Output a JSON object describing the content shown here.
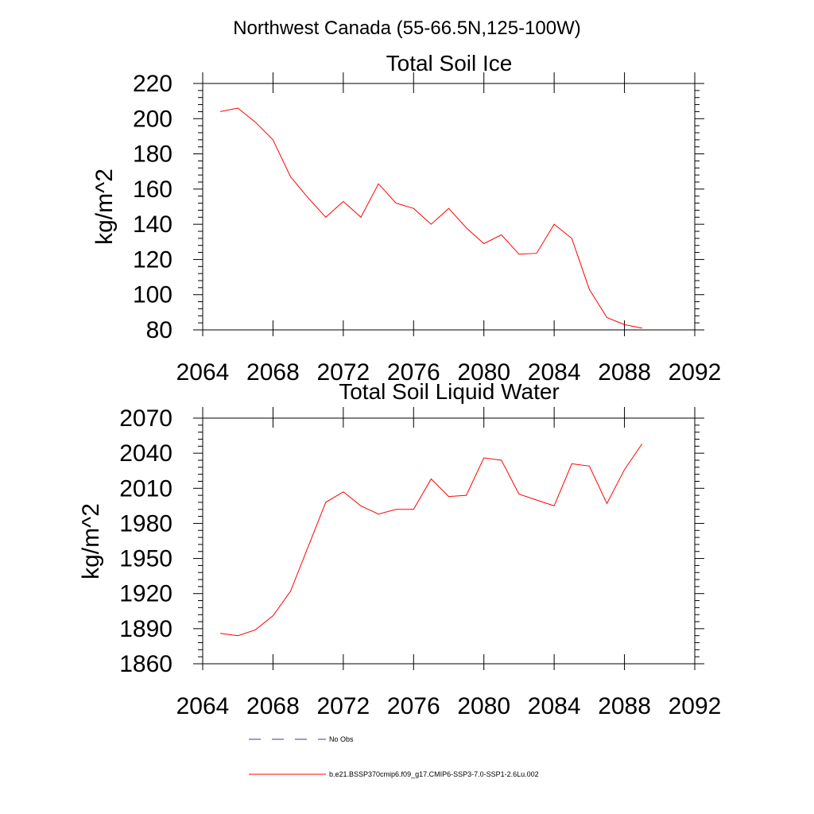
{
  "page_title": "Northwest Canada (55-66.5N,125-100W)",
  "colors": {
    "series": "#ff0000",
    "obs": "#3a3aa0",
    "axis": "#000000"
  },
  "chart_data": [
    {
      "type": "line",
      "title": "Total Soil Ice",
      "xlabel": "",
      "ylabel": "kg/m^2",
      "xlim": [
        2064,
        2092
      ],
      "ylim": [
        80,
        220
      ],
      "x_ticks": [
        2064,
        2068,
        2072,
        2076,
        2080,
        2084,
        2088,
        2092
      ],
      "y_ticks": [
        80,
        100,
        120,
        140,
        160,
        180,
        200,
        220
      ],
      "grid": false,
      "series": [
        {
          "name": "b.e21.BSSP370cmip6.f09_g17.CMIP6-SSP3-7.0-SSP1-2.6Lu.002",
          "x": [
            2065,
            2066,
            2067,
            2068,
            2069,
            2070,
            2071,
            2072,
            2073,
            2074,
            2075,
            2076,
            2077,
            2078,
            2079,
            2080,
            2081,
            2082,
            2083,
            2084,
            2085,
            2086,
            2087,
            2088,
            2089
          ],
          "y": [
            204,
            206,
            198,
            188,
            167,
            155,
            144,
            153,
            144,
            163,
            152,
            149,
            140,
            149,
            138,
            129,
            134,
            123,
            123.5,
            140,
            132,
            103,
            87,
            83,
            81
          ]
        }
      ]
    },
    {
      "type": "line",
      "title": "Total Soil Liquid Water",
      "xlabel": "",
      "ylabel": "kg/m^2",
      "xlim": [
        2064,
        2092
      ],
      "ylim": [
        1860,
        2070
      ],
      "x_ticks": [
        2064,
        2068,
        2072,
        2076,
        2080,
        2084,
        2088,
        2092
      ],
      "y_ticks": [
        1860,
        1890,
        1920,
        1950,
        1980,
        2010,
        2040,
        2070
      ],
      "grid": false,
      "series": [
        {
          "name": "b.e21.BSSP370cmip6.f09_g17.CMIP6-SSP3-7.0-SSP1-2.6Lu.002",
          "x": [
            2065,
            2066,
            2067,
            2068,
            2069,
            2070,
            2071,
            2072,
            2073,
            2074,
            2075,
            2076,
            2077,
            2078,
            2079,
            2080,
            2081,
            2082,
            2083,
            2084,
            2085,
            2086,
            2087,
            2088,
            2089
          ],
          "y": [
            1886,
            1884,
            1889,
            1901,
            1922,
            1960,
            1998,
            2007,
            1995,
            1988,
            1992,
            1992,
            2018,
            2003,
            2004,
            2036,
            2034,
            2005,
            2000,
            1995,
            2031,
            2029,
            1997,
            2026,
            2048
          ]
        }
      ]
    }
  ],
  "legend": {
    "entries": [
      {
        "label": "No Obs",
        "style": "dashed",
        "color": "#3a3aa0"
      },
      {
        "label": "b.e21.BSSP370cmip6.f09_g17.CMIP6-SSP3-7.0-SSP1-2.6Lu.002",
        "style": "solid",
        "color": "#ff0000"
      }
    ]
  }
}
